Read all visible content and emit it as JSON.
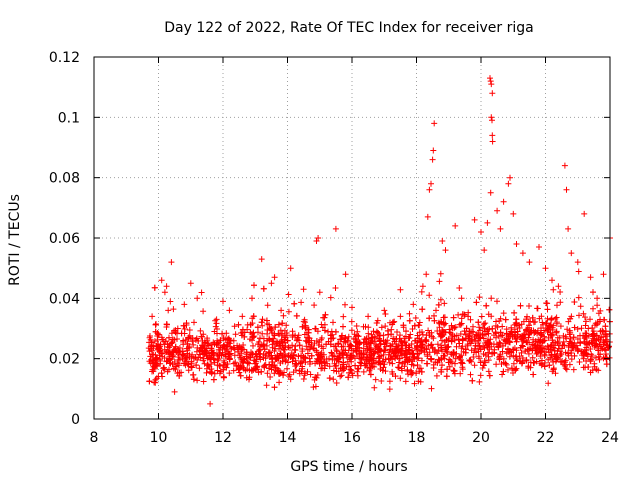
{
  "chart_data": {
    "type": "scatter",
    "title": "Day 122 of 2022, Rate Of TEC Index for receiver riga",
    "xlabel": "GPS time / hours",
    "ylabel": "ROTI / TECUs",
    "xlim": [
      8,
      24
    ],
    "ylim": [
      0,
      0.12
    ],
    "x_ticks": [
      8,
      10,
      12,
      14,
      16,
      18,
      20,
      22,
      24
    ],
    "x_tick_labels": [
      "8",
      "10",
      "12",
      "14",
      "16",
      "18",
      "20",
      "22",
      "24"
    ],
    "y_ticks": [
      0,
      0.02,
      0.04,
      0.06,
      0.08,
      0.1,
      0.12
    ],
    "y_tick_labels": [
      "0",
      "0.02",
      "0.04",
      "0.06",
      "0.08",
      "0.1",
      "0.12"
    ],
    "grid": true,
    "marker": "+",
    "color": "#ff0000",
    "series": [
      {
        "name": "ROTI",
        "x_range": [
          9.7,
          24.0
        ],
        "typical_range": [
          0.008,
          0.036
        ],
        "points": [
          [
            9.8,
            0.034
          ],
          [
            9.9,
            0.012
          ],
          [
            10.0,
            0.028
          ],
          [
            10.1,
            0.046
          ],
          [
            10.2,
            0.042
          ],
          [
            10.25,
            0.044
          ],
          [
            10.3,
            0.036
          ],
          [
            10.4,
            0.052
          ],
          [
            10.5,
            0.009
          ],
          [
            10.6,
            0.03
          ],
          [
            10.8,
            0.038
          ],
          [
            11.0,
            0.045
          ],
          [
            11.2,
            0.04
          ],
          [
            11.4,
            0.02
          ],
          [
            11.6,
            0.005
          ],
          [
            11.8,
            0.033
          ],
          [
            12.0,
            0.039
          ],
          [
            12.2,
            0.036
          ],
          [
            12.6,
            0.034
          ],
          [
            12.9,
            0.04
          ],
          [
            13.2,
            0.053
          ],
          [
            13.5,
            0.045
          ],
          [
            13.6,
            0.047
          ],
          [
            13.8,
            0.036
          ],
          [
            14.1,
            0.05
          ],
          [
            14.5,
            0.043
          ],
          [
            14.9,
            0.059
          ],
          [
            14.95,
            0.06
          ],
          [
            15.0,
            0.042
          ],
          [
            15.5,
            0.063
          ],
          [
            15.8,
            0.048
          ],
          [
            16.0,
            0.037
          ],
          [
            16.5,
            0.034
          ],
          [
            17.0,
            0.036
          ],
          [
            17.5,
            0.034
          ],
          [
            17.9,
            0.038
          ],
          [
            18.2,
            0.044
          ],
          [
            18.3,
            0.048
          ],
          [
            18.35,
            0.067
          ],
          [
            18.4,
            0.076
          ],
          [
            18.45,
            0.078
          ],
          [
            18.5,
            0.086
          ],
          [
            18.52,
            0.089
          ],
          [
            18.55,
            0.098
          ],
          [
            18.8,
            0.059
          ],
          [
            18.9,
            0.056
          ],
          [
            19.2,
            0.064
          ],
          [
            19.4,
            0.04
          ],
          [
            19.6,
            0.034
          ],
          [
            19.8,
            0.066
          ],
          [
            20.0,
            0.062
          ],
          [
            20.1,
            0.056
          ],
          [
            20.2,
            0.065
          ],
          [
            20.3,
            0.075
          ],
          [
            20.28,
            0.113
          ],
          [
            20.3,
            0.112
          ],
          [
            20.32,
            0.111
          ],
          [
            20.35,
            0.108
          ],
          [
            20.32,
            0.1
          ],
          [
            20.34,
            0.099
          ],
          [
            20.35,
            0.094
          ],
          [
            20.36,
            0.092
          ],
          [
            20.5,
            0.069
          ],
          [
            20.6,
            0.063
          ],
          [
            20.7,
            0.072
          ],
          [
            20.9,
            0.08
          ],
          [
            20.85,
            0.078
          ],
          [
            21.0,
            0.068
          ],
          [
            21.1,
            0.058
          ],
          [
            21.3,
            0.055
          ],
          [
            21.5,
            0.052
          ],
          [
            21.8,
            0.057
          ],
          [
            22.0,
            0.05
          ],
          [
            22.2,
            0.046
          ],
          [
            22.4,
            0.044
          ],
          [
            22.6,
            0.084
          ],
          [
            22.65,
            0.076
          ],
          [
            22.7,
            0.063
          ],
          [
            22.8,
            0.055
          ],
          [
            23.0,
            0.052
          ],
          [
            23.2,
            0.068
          ],
          [
            23.4,
            0.047
          ],
          [
            23.6,
            0.04
          ],
          [
            23.8,
            0.048
          ],
          [
            24.0,
            0.06
          ]
        ]
      }
    ]
  }
}
